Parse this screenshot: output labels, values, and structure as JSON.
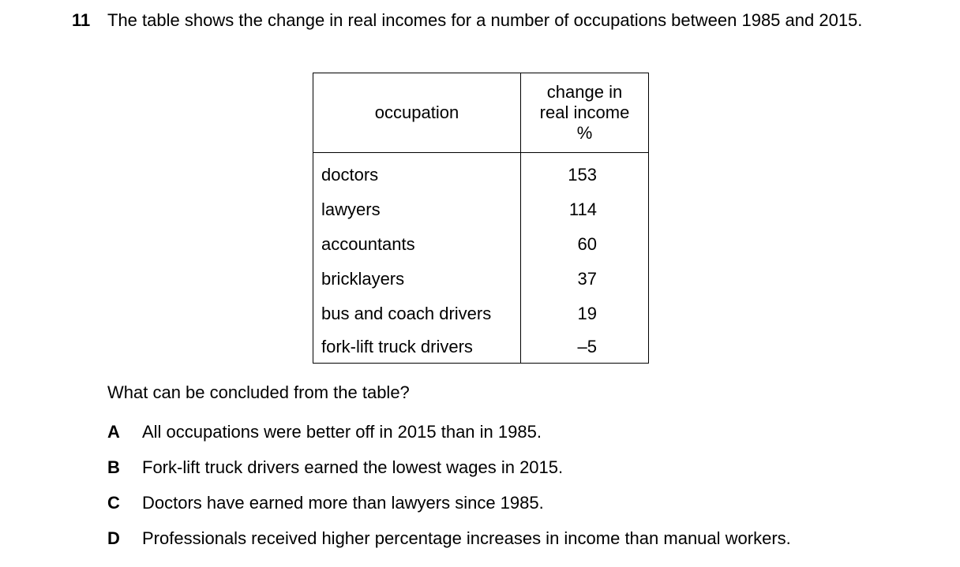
{
  "question": {
    "number": "11",
    "stem": "The table shows the change in real incomes for a number of occupations between 1985 and 2015."
  },
  "table": {
    "header_occupation": "occupation",
    "header_change_line1": "change in",
    "header_change_line2": "real income",
    "header_change_unit": "%",
    "rows": [
      {
        "occupation": "doctors",
        "change": "153"
      },
      {
        "occupation": "lawyers",
        "change": "114"
      },
      {
        "occupation": "accountants",
        "change": "60"
      },
      {
        "occupation": "bricklayers",
        "change": "37"
      },
      {
        "occupation": "bus and coach drivers",
        "change": "19"
      },
      {
        "occupation": "fork-lift truck drivers",
        "change": "–5"
      }
    ]
  },
  "prompt": "What can be concluded from the table?",
  "options": [
    {
      "letter": "A",
      "text": "All occupations were better off in 2015 than in 1985."
    },
    {
      "letter": "B",
      "text": "Fork-lift truck drivers earned the lowest wages in 2015."
    },
    {
      "letter": "C",
      "text": "Doctors have earned more than lawyers since 1985."
    },
    {
      "letter": "D",
      "text": "Professionals received higher percentage increases in income than manual workers."
    }
  ]
}
